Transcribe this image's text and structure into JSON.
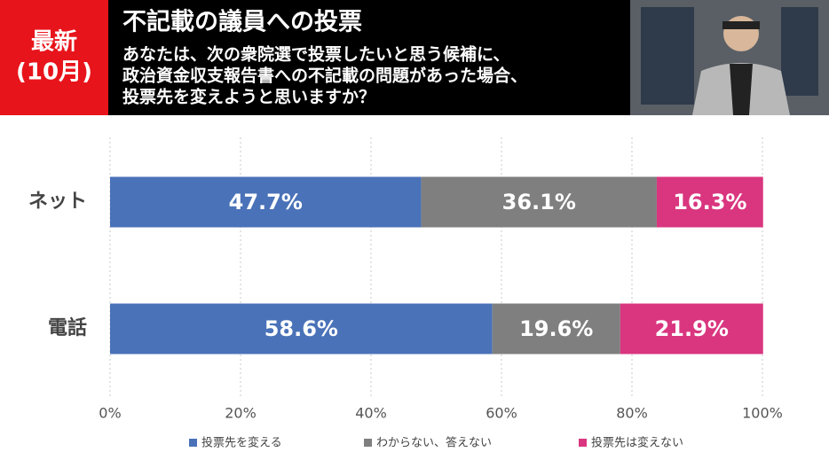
{
  "header": {
    "badge": [
      "最新",
      "(10月)"
    ],
    "title": "不記載の議員への投票",
    "question": [
      "あなたは、次の衆院選で投票したいと思う候補に、",
      "政治資金収支報告書への不記載の問題があった場合、",
      "投票先を変えようと思いますか？"
    ]
  },
  "chart_data": {
    "type": "barh",
    "categories": [
      "ネット",
      "電話"
    ],
    "series": [
      {
        "name": "投票先を変える",
        "color": "#4a72b8",
        "values": [
          47.7,
          58.6
        ],
        "value_labels": [
          "47.7%",
          "58.6%"
        ]
      },
      {
        "name": "わからない、答えない",
        "color": "#7f7f7f",
        "values": [
          36.1,
          19.6
        ],
        "value_labels": [
          "36.1%",
          "19.6%"
        ]
      },
      {
        "name": "投票先は変えない",
        "color": "#d9367f",
        "values": [
          16.3,
          21.9
        ],
        "value_labels": [
          "16.3%",
          "21.9%"
        ]
      }
    ],
    "xlim": [
      0,
      100
    ],
    "xticks": [
      {
        "value": 0,
        "label": "0%"
      },
      {
        "value": 20,
        "label": "20%"
      },
      {
        "value": 40,
        "label": "40%"
      },
      {
        "value": 60,
        "label": "60%"
      },
      {
        "value": 80,
        "label": "80%"
      },
      {
        "value": 100,
        "label": "100%"
      }
    ],
    "grid": true,
    "legend": "bottom"
  }
}
